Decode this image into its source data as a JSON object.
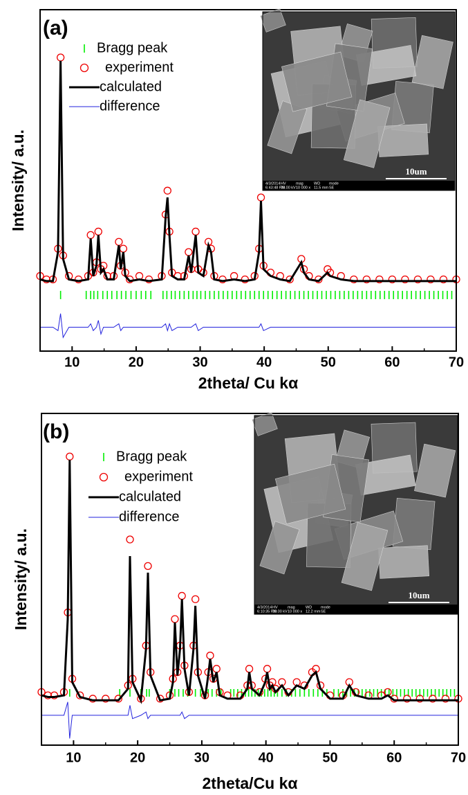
{
  "chart_data": [
    {
      "type": "line",
      "panel_label": "(a)",
      "xlabel": "2theta/ Cu kα",
      "ylabel": "Intensity/ a.u.",
      "xlim": [
        5,
        70
      ],
      "xticks": [
        10,
        20,
        30,
        40,
        50,
        60,
        70
      ],
      "ylim": [
        0,
        100
      ],
      "x": [
        5,
        6,
        7,
        7.8,
        8.2,
        8.6,
        9.5,
        11,
        12.5,
        12.9,
        13.3,
        13.8,
        14.1,
        14.5,
        14.9,
        15.5,
        16.5,
        17.3,
        17.6,
        18,
        18.3,
        19,
        20.5,
        22,
        24,
        24.6,
        24.9,
        25.2,
        25.6,
        26.5,
        27.5,
        28.2,
        28.6,
        29.3,
        29.7,
        30.5,
        31.3,
        31.7,
        32.2,
        33.5,
        35.3,
        37,
        38.5,
        39.2,
        39.5,
        39.9,
        41,
        42.5,
        44,
        45.8,
        46.2,
        47,
        48.5,
        49.9,
        50.3,
        52,
        54,
        56,
        58,
        60,
        62,
        64,
        66,
        68,
        70
      ],
      "series": [
        {
          "name": "Bragg peak",
          "style": "tick",
          "color": "#00ee00",
          "x": [
            8.2,
            12.2,
            12.9,
            13.4,
            14,
            14.8,
            15.5,
            16.2,
            17,
            17.7,
            18.4,
            19.2,
            20,
            20.8,
            21.5,
            22.3,
            24.2,
            24.8,
            25.5,
            26.1,
            26.8,
            27.5,
            28.2,
            28.9,
            29.5,
            30.1,
            30.8,
            31.5,
            32.2,
            32.9,
            33.6,
            34.3,
            35,
            35.7,
            36.4,
            37.1,
            37.8,
            38.5,
            39.2,
            39.9,
            40.6,
            41.3,
            42,
            42.7,
            43.4,
            44.1,
            44.8,
            45.5,
            46.2,
            46.9,
            47.6,
            48.3,
            49,
            49.7,
            50.4,
            51.1,
            51.8,
            52.5,
            53.2,
            53.9,
            54.6,
            55.3,
            56,
            56.7,
            57.4,
            58.1,
            58.8,
            59.5,
            60.2,
            60.9,
            61.6,
            62.3,
            63,
            63.7,
            64.4,
            65.1,
            65.8,
            66.5,
            67.2,
            67.9,
            68.6,
            69.3
          ]
        },
        {
          "name": "experiment",
          "style": "circle",
          "color": "#ee0000",
          "values": [
            22,
            21,
            21,
            30,
            86,
            28,
            22,
            21,
            22,
            34,
            23,
            26,
            35,
            24,
            25,
            22,
            22,
            32,
            25,
            30,
            23,
            21,
            22,
            21,
            22,
            40,
            47,
            35,
            23,
            22,
            22,
            29,
            24,
            35,
            24,
            23,
            32,
            30,
            22,
            21,
            22,
            21,
            22,
            30,
            45,
            25,
            23,
            22,
            21,
            27,
            24,
            22,
            21,
            24,
            23,
            22,
            21,
            21,
            21,
            21,
            21,
            21,
            21,
            21,
            21
          ]
        },
        {
          "name": "calculated",
          "style": "line",
          "color": "#000000",
          "width": 3,
          "values": [
            21,
            20.5,
            20.5,
            29,
            85,
            27,
            21,
            20.5,
            21,
            33,
            22,
            25,
            34,
            23,
            24,
            21,
            21,
            31,
            24,
            29,
            22,
            20.5,
            21,
            20.5,
            21,
            39,
            45,
            34,
            22,
            21,
            21,
            28,
            23,
            34,
            23,
            22,
            31,
            29,
            21,
            20.5,
            21,
            20.5,
            21,
            29,
            44,
            24,
            22,
            21,
            20.5,
            26,
            23,
            21,
            20.5,
            23,
            22,
            21,
            20.5,
            20.5,
            20.5,
            20.5,
            20.5,
            20.5,
            20.5,
            20.5,
            20.5
          ]
        },
        {
          "name": "difference",
          "style": "line",
          "color": "#2222dd",
          "width": 1,
          "values": [
            7,
            7,
            7,
            6,
            11,
            4,
            7,
            7,
            7,
            8,
            6,
            7,
            9,
            5,
            7,
            7,
            7,
            8,
            6,
            7,
            7,
            7,
            7,
            7,
            7,
            8,
            6,
            8,
            6,
            7,
            7,
            7,
            7,
            8,
            6,
            7,
            7,
            7,
            7,
            7,
            7,
            7,
            7,
            7,
            8,
            6,
            7,
            7,
            7,
            7,
            7,
            7,
            7,
            7,
            7,
            7,
            7,
            7,
            7,
            7,
            7,
            7,
            7,
            7,
            7
          ]
        }
      ],
      "inset": {
        "scale_bar": "10um",
        "info": [
          [
            "4/3/2014",
            "HV",
            "mag",
            "WD",
            "mode"
          ],
          [
            "6:43:48 PM",
            "20.00 kV",
            "10 000 x",
            "11.5 mm",
            "SE"
          ]
        ]
      }
    },
    {
      "type": "line",
      "panel_label": "(b)",
      "xlabel": "2theta/Cu kα",
      "ylabel": "Intensity/ a.u.",
      "xlim": [
        5,
        70
      ],
      "xticks": [
        10,
        20,
        30,
        40,
        50,
        60,
        70
      ],
      "ylim": [
        0,
        100
      ],
      "x": [
        5,
        6,
        7,
        8.5,
        9.1,
        9.4,
        9.8,
        11,
        13,
        15,
        17,
        18.5,
        18.8,
        19.2,
        20.5,
        21.3,
        21.6,
        22,
        23.5,
        25,
        25.5,
        25.8,
        26.2,
        26.6,
        26.9,
        27.3,
        28,
        28.7,
        29,
        29.4,
        30.5,
        31,
        31.3,
        31.8,
        32.3,
        32.8,
        34,
        36,
        37.1,
        37.4,
        37.8,
        39,
        39.9,
        40.2,
        40.6,
        41,
        41.5,
        42.5,
        43.5,
        44.8,
        46,
        47.2,
        47.8,
        48.5,
        50,
        52,
        53,
        54,
        56,
        58,
        59,
        60,
        62,
        64,
        66,
        68,
        70
      ],
      "series": [
        {
          "name": "Bragg peak",
          "style": "tick",
          "color": "#00ee00",
          "x": [
            9.4,
            17.2,
            18.8,
            20.5,
            21.4,
            21.8,
            25,
            25.8,
            26.4,
            27.1,
            27.8,
            29,
            29.8,
            31,
            31.6,
            32.3,
            33,
            34.5,
            35,
            35.6,
            36.2,
            36.8,
            37.3,
            37.8,
            38.3,
            38.8,
            39.3,
            39.8,
            40.3,
            40.8,
            41.3,
            41.8,
            42.5,
            43.2,
            44,
            44.6,
            45.3,
            46,
            46.7,
            47.4,
            48.1,
            48.8,
            49.5,
            50.6,
            51.3,
            52,
            52.6,
            53.2,
            53.8,
            54.4,
            55,
            55.6,
            56.2,
            56.8,
            57.4,
            58,
            58.6,
            59.2,
            59.8,
            60.4,
            61,
            61.6,
            62.2,
            62.8,
            63.4,
            64,
            64.6,
            65.2,
            65.8,
            66.4,
            67,
            67.6,
            68.2,
            68.8,
            69.4
          ]
        },
        {
          "name": "experiment",
          "style": "circle",
          "color": "#ee0000",
          "values": [
            16,
            15,
            15,
            16,
            40,
            87,
            20,
            15,
            14,
            14,
            14,
            18,
            62,
            20,
            14,
            30,
            54,
            22,
            14,
            15,
            20,
            38,
            22,
            30,
            45,
            24,
            16,
            30,
            44,
            22,
            15,
            22,
            27,
            20,
            23,
            16,
            15,
            15,
            18,
            23,
            18,
            16,
            20,
            23,
            18,
            19,
            17,
            19,
            16,
            19,
            18,
            22,
            23,
            18,
            15,
            15,
            19,
            16,
            15,
            15,
            16,
            14,
            14,
            14,
            14,
            14,
            14
          ]
        },
        {
          "name": "calculated",
          "style": "line",
          "color": "#000000",
          "width": 3,
          "values": [
            15,
            14.5,
            14.5,
            15,
            38,
            86,
            19,
            14.5,
            13.5,
            13.5,
            13.5,
            17,
            57,
            19,
            13.5,
            29,
            52,
            21,
            13.5,
            14,
            19,
            37,
            21,
            29,
            44,
            23,
            15,
            29,
            42,
            21,
            14,
            21,
            26,
            19,
            22,
            15,
            14,
            14,
            17,
            22,
            17,
            15,
            19,
            22,
            17,
            18,
            16,
            18,
            15,
            18,
            17,
            21,
            22,
            17,
            14,
            14,
            18,
            15,
            14,
            14,
            15,
            13.5,
            13.5,
            13.5,
            13.5,
            13.5,
            13.5
          ]
        },
        {
          "name": "difference",
          "style": "line",
          "color": "#2222dd",
          "width": 1,
          "values": [
            9,
            9,
            9,
            9,
            13,
            2,
            9,
            9,
            9,
            9,
            9,
            9,
            12,
            8,
            9,
            10,
            8,
            9,
            9,
            9,
            9,
            9,
            9,
            9,
            10,
            8,
            9,
            9,
            9,
            9,
            9,
            9,
            9,
            9,
            9,
            9,
            9,
            9,
            9,
            9,
            9,
            9,
            9,
            9,
            9,
            9,
            9,
            9,
            9,
            9,
            9,
            9,
            9,
            9,
            9,
            9,
            9,
            9,
            9,
            9,
            9,
            9,
            9,
            9,
            9,
            9,
            9
          ]
        }
      ],
      "inset": {
        "scale_bar": "10um",
        "info": [
          [
            "4/3/2014",
            "HV",
            "mag",
            "WD",
            "mode"
          ],
          [
            "6:10:35 PM",
            "20.00 kV",
            "10 000 x",
            "12.2 mm",
            "SE"
          ]
        ]
      }
    }
  ]
}
